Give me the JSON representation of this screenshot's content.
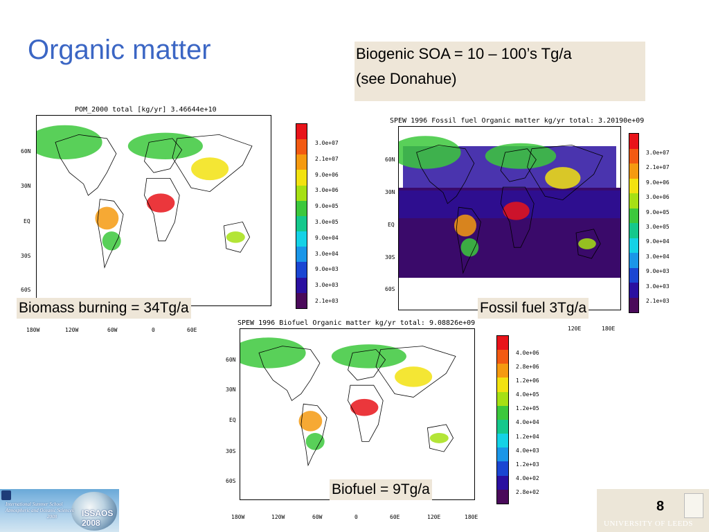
{
  "slide": {
    "title": "Organic matter",
    "soa_line1": "Biogenic SOA = 10 – 100’s Tg/a",
    "soa_line2": "(see Donahue)",
    "page_number": "8",
    "footer_left_lines": [
      "International Summer School",
      "Atmospheric and Oceanic Sciences",
      "2008"
    ],
    "footer_left_acronym": "ISSAOS 2008",
    "footer_right_org": "UNIVERSITY OF LEEDS"
  },
  "maps": {
    "biomass": {
      "title": "POM_2000 total [kg/yr]  3.46644e+10",
      "caption": "Biomass burning = 34Tg/a",
      "lat_labels": [
        "60N",
        "30N",
        "EQ",
        "30S",
        "60S"
      ],
      "lon_labels": [
        "180W",
        "120W",
        "60W",
        "0",
        "60E"
      ],
      "colorbar_labels": [
        "3.0e+07",
        "2.1e+07",
        "9.0e+06",
        "3.0e+06",
        "9.0e+05",
        "3.0e+05",
        "9.0e+04",
        "3.0e+04",
        "9.0e+03",
        "3.0e+03",
        "2.1e+03"
      ]
    },
    "fossil": {
      "title": "SPEW 1996 Fossil fuel Organic matter kg/yr total: 3.20190e+09",
      "caption": "Fossil fuel 3Tg/a",
      "lat_labels": [
        "60N",
        "30N",
        "EQ",
        "30S",
        "60S"
      ],
      "lon_labels": [
        "120E",
        "180E"
      ],
      "colorbar_labels": [
        "3.0e+07",
        "2.1e+07",
        "9.0e+06",
        "3.0e+06",
        "9.0e+05",
        "3.0e+05",
        "9.0e+04",
        "3.0e+04",
        "9.0e+03",
        "3.0e+03",
        "2.1e+03"
      ]
    },
    "biofuel": {
      "title": "SPEW 1996 Biofuel Organic matter kg/yr total: 9.08826e+09",
      "caption": "Biofuel = 9Tg/a",
      "lat_labels": [
        "60N",
        "30N",
        "EQ",
        "30S",
        "60S"
      ],
      "lon_labels": [
        "180W",
        "120W",
        "60W",
        "0",
        "60E",
        "120E",
        "180E"
      ],
      "colorbar_labels": [
        "4.0e+06",
        "2.8e+06",
        "1.2e+06",
        "4.0e+05",
        "1.2e+05",
        "4.0e+04",
        "1.2e+04",
        "4.0e+03",
        "1.2e+03",
        "4.0e+02",
        "2.8e+02"
      ]
    }
  },
  "colorbar_colors": [
    "#e8141a",
    "#f25a12",
    "#f59a10",
    "#f2e210",
    "#a6e014",
    "#3cc83c",
    "#14c88c",
    "#14d2e6",
    "#1a96e8",
    "#1a46d2",
    "#2a10a0",
    "#4a0a5a"
  ]
}
